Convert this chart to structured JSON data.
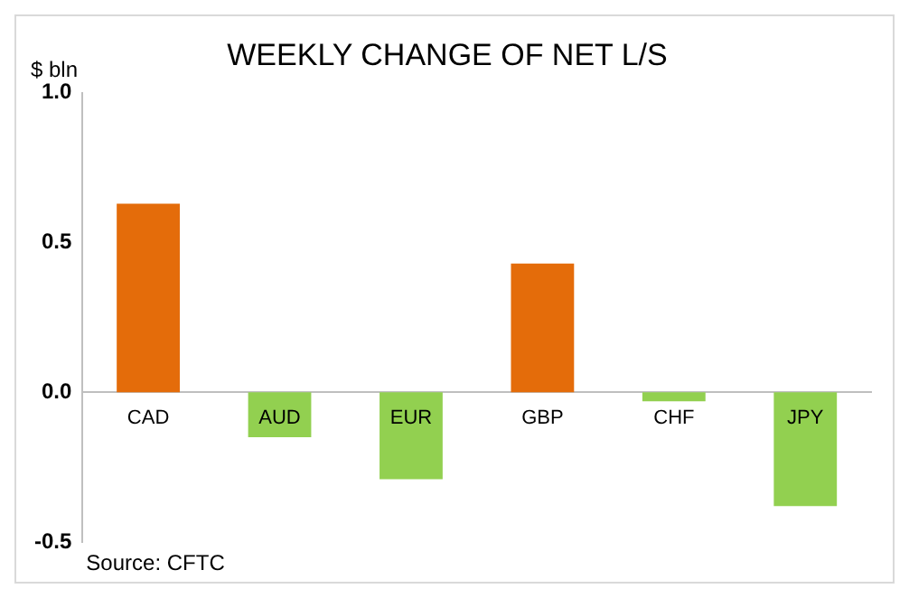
{
  "chart_data": {
    "type": "bar",
    "title": "WEEKLY CHANGE OF NET L/S",
    "ylabel": "$ bln",
    "categories": [
      "CAD",
      "AUD",
      "EUR",
      "GBP",
      "CHF",
      "JPY"
    ],
    "values": [
      0.63,
      -0.15,
      -0.29,
      0.43,
      -0.03,
      -0.38
    ],
    "colors": [
      "#e46c0a",
      "#92d050",
      "#92d050",
      "#e46c0a",
      "#92d050",
      "#92d050"
    ],
    "ylim": [
      -0.5,
      1.0
    ],
    "yticks": [
      {
        "value": -0.5,
        "label": "-0.5"
      },
      {
        "value": 0,
        "label": "0.0"
      },
      {
        "value": 0.5,
        "label": "0.5"
      },
      {
        "value": 1.0,
        "label": "1.0"
      }
    ],
    "grid": false,
    "legend": false,
    "annotations": [
      "Source: CFTC"
    ]
  }
}
